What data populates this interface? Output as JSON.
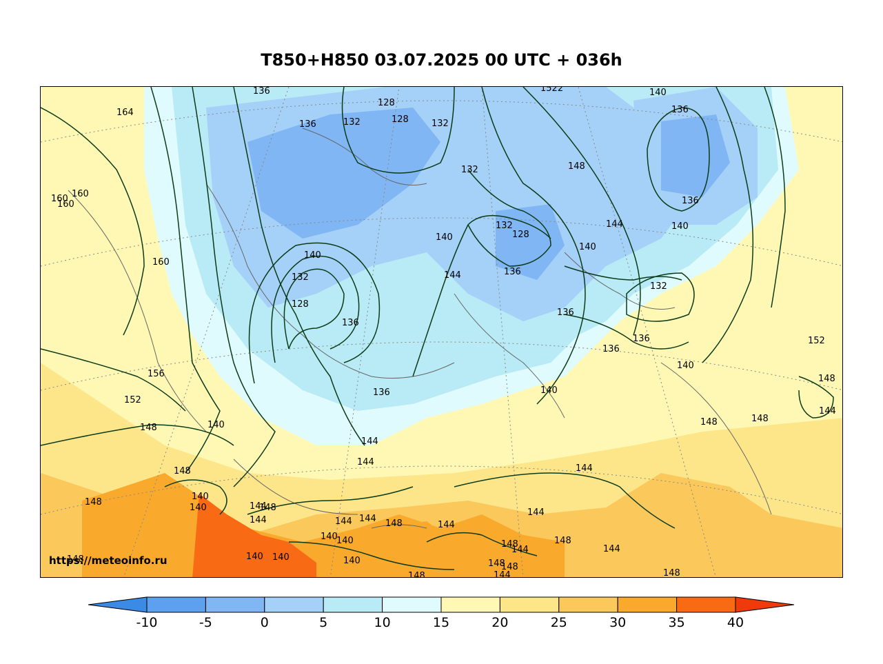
{
  "title": "T850+H850 03.07.2025 00 UTC + 036h",
  "watermark": "https://meteoinfo.ru",
  "colorbar": {
    "ticks": [
      "-10",
      "-5",
      "0",
      "5",
      "10",
      "15",
      "20",
      "25",
      "30",
      "35",
      "40"
    ],
    "colors": [
      "#3a8ae6",
      "#5ca0ee",
      "#7fb6f3",
      "#a5d0f8",
      "#b8ebf6",
      "#e0fbfd",
      "#fff8b4",
      "#fde68a",
      "#fbc85b",
      "#f9a92c",
      "#f96a14",
      "#f03a0c"
    ]
  },
  "contour_labels": [
    {
      "text": "136"
    },
    {
      "text": "164"
    },
    {
      "text": "128"
    },
    {
      "text": "128"
    },
    {
      "text": "136"
    },
    {
      "text": "132"
    },
    {
      "text": "132"
    },
    {
      "text": "1522"
    },
    {
      "text": "140"
    },
    {
      "text": "136"
    },
    {
      "text": "132"
    },
    {
      "text": "148"
    },
    {
      "text": "160"
    },
    {
      "text": "160"
    },
    {
      "text": "160"
    },
    {
      "text": "136"
    },
    {
      "text": "140"
    },
    {
      "text": "144"
    },
    {
      "text": "132"
    },
    {
      "text": "128"
    },
    {
      "text": "140"
    },
    {
      "text": "140"
    },
    {
      "text": "160"
    },
    {
      "text": "140"
    },
    {
      "text": "132"
    },
    {
      "text": "128"
    },
    {
      "text": "144"
    },
    {
      "text": "136"
    },
    {
      "text": "132"
    },
    {
      "text": "136"
    },
    {
      "text": "136"
    },
    {
      "text": "136"
    },
    {
      "text": "136"
    },
    {
      "text": "152"
    },
    {
      "text": "156"
    },
    {
      "text": "140"
    },
    {
      "text": "148"
    },
    {
      "text": "152"
    },
    {
      "text": "136"
    },
    {
      "text": "140"
    },
    {
      "text": "144"
    },
    {
      "text": "148"
    },
    {
      "text": "148"
    },
    {
      "text": "148"
    },
    {
      "text": "140"
    },
    {
      "text": "144"
    },
    {
      "text": "144"
    },
    {
      "text": "144"
    },
    {
      "text": "148"
    },
    {
      "text": "140"
    },
    {
      "text": "140"
    },
    {
      "text": "148"
    },
    {
      "text": "144"
    },
    {
      "text": "144"
    },
    {
      "text": "144"
    },
    {
      "text": "144"
    },
    {
      "text": "148"
    },
    {
      "text": "144"
    },
    {
      "text": "148"
    },
    {
      "text": "144"
    },
    {
      "text": "148"
    },
    {
      "text": "140"
    },
    {
      "text": "140"
    },
    {
      "text": "140"
    },
    {
      "text": "140"
    },
    {
      "text": "140"
    },
    {
      "text": "148"
    },
    {
      "text": "148"
    },
    {
      "text": "144"
    },
    {
      "text": "148"
    },
    {
      "text": "148"
    },
    {
      "text": "144"
    },
    {
      "text": "148"
    },
    {
      "text": "148"
    },
    {
      "text": "144"
    }
  ]
}
